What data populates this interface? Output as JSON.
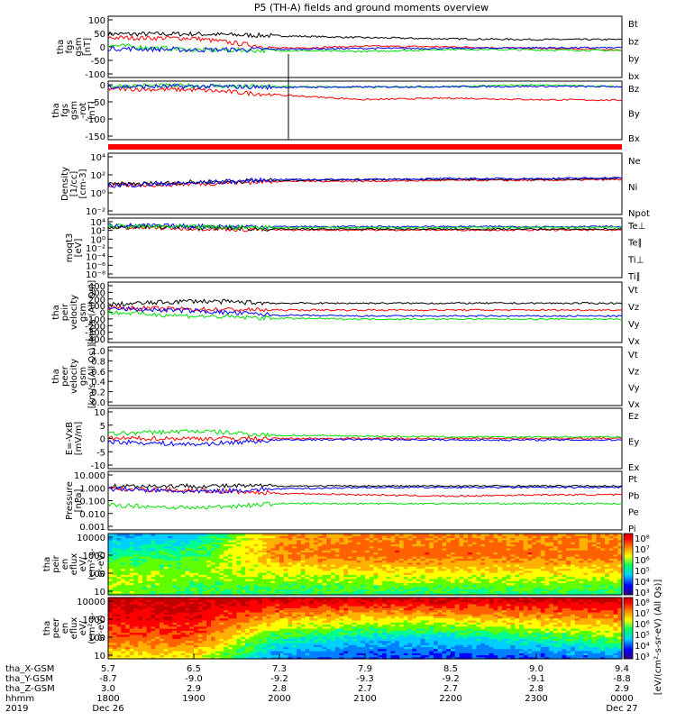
{
  "title": "P5 (TH-A) fields and ground moments overview",
  "colors": {
    "black": "#000000",
    "red": "#ff0000",
    "green": "#00e000",
    "blue": "#0000ff",
    "bar": "#ff0000"
  },
  "chart_data": [
    {
      "type": "line",
      "id": "fgs_gsm",
      "ylabel": [
        "tha",
        "fgs",
        "gsm",
        "[nT]"
      ],
      "yticks": [
        "100",
        "50",
        "0",
        "-50",
        "-100"
      ],
      "ylim": [
        -100,
        100
      ],
      "legend": [
        {
          "name": "Bt",
          "color": "black"
        },
        {
          "name": "bz",
          "color": "red"
        },
        {
          "name": "by",
          "color": "green"
        },
        {
          "name": "bx",
          "color": "blue"
        }
      ],
      "series": [
        {
          "name": "Bt",
          "color": "black",
          "x": [
            "1800",
            "1900",
            "2000",
            "2100",
            "2200",
            "2300",
            "0000"
          ],
          "values": [
            42,
            42,
            36,
            30,
            26,
            24,
            24
          ]
        },
        {
          "name": "bz",
          "color": "red",
          "x": [
            "1800",
            "1900",
            "2000",
            "2100",
            "2200",
            "2300",
            "0000"
          ],
          "values": [
            30,
            28,
            -5,
            2,
            0,
            -5,
            -10
          ]
        },
        {
          "name": "by",
          "color": "green",
          "x": [
            "1800",
            "1900",
            "2000",
            "2100",
            "2200",
            "2300",
            "0000"
          ],
          "values": [
            5,
            -10,
            -12,
            -15,
            -8,
            -10,
            -12
          ]
        },
        {
          "name": "bx",
          "color": "blue",
          "x": [
            "1800",
            "1900",
            "2000",
            "2100",
            "2200",
            "2300",
            "0000"
          ],
          "values": [
            -5,
            -10,
            -8,
            -5,
            -5,
            -3,
            -3
          ]
        }
      ]
    },
    {
      "type": "line",
      "id": "fgs_rot",
      "ylabel": [
        "tha",
        "fgs",
        "gsm",
        "-rot",
        "[nT]"
      ],
      "yticks": [
        "0",
        "-50",
        "-100",
        "-150"
      ],
      "ylim": [
        -170,
        20
      ],
      "legend": [
        {
          "name": "Bz",
          "color": "red"
        },
        {
          "name": "By",
          "color": "green"
        },
        {
          "name": "Bx",
          "color": "blue"
        }
      ],
      "series": [
        {
          "name": "Bz",
          "color": "red",
          "x": [
            "1800",
            "1900",
            "2000",
            "2100",
            "2200",
            "2300",
            "0000"
          ],
          "values": [
            -5,
            -8,
            -25,
            -40,
            -35,
            -40,
            -42
          ]
        },
        {
          "name": "By",
          "color": "green",
          "x": [
            "1800",
            "1900",
            "2000",
            "2100",
            "2200",
            "2300",
            "0000"
          ],
          "values": [
            5,
            5,
            2,
            0,
            2,
            8,
            2
          ]
        },
        {
          "name": "Bx",
          "color": "blue",
          "x": [
            "1800",
            "1900",
            "2000",
            "2100",
            "2200",
            "2300",
            "0000"
          ],
          "values": [
            2,
            3,
            0,
            1,
            2,
            3,
            2
          ]
        }
      ]
    },
    {
      "type": "line",
      "id": "density",
      "scale": "log",
      "ylabel": [
        "Density",
        "[1/cc]",
        "[cm-3]"
      ],
      "yticks": [
        "10⁴",
        "10²",
        "10⁰",
        "10⁻²"
      ],
      "ylim": [
        -3,
        4
      ],
      "legend": [
        {
          "name": "Ne",
          "color": "red"
        },
        {
          "name": "Ni",
          "color": "black"
        },
        {
          "name": "Npot",
          "color": "blue"
        }
      ],
      "series": [
        {
          "name": "Ne",
          "color": "red",
          "x": [
            "1800",
            "1900",
            "2000",
            "2100",
            "2200",
            "2300",
            "0000"
          ],
          "values": [
            0.3,
            0.5,
            0.8,
            0.8,
            0.9,
            0.9,
            1.0
          ]
        },
        {
          "name": "Ni",
          "color": "black",
          "x": [
            "1800",
            "1900",
            "2000",
            "2100",
            "2200",
            "2300",
            "0000"
          ],
          "values": [
            0.4,
            0.7,
            0.9,
            1.0,
            1.0,
            1.0,
            1.1
          ]
        },
        {
          "name": "Npot",
          "color": "blue",
          "x": [
            "1800",
            "1900",
            "2000",
            "2100",
            "2200",
            "2300",
            "0000"
          ],
          "values": [
            0.3,
            0.6,
            1.0,
            1.0,
            1.1,
            1.1,
            1.2
          ]
        }
      ]
    },
    {
      "type": "line",
      "id": "temperature",
      "scale": "log",
      "ylabel": [
        "moqt3",
        "[eV]"
      ],
      "yticks": [
        "10⁴",
        "10²",
        "10⁰",
        "10⁻²",
        "10⁻⁴",
        "10⁻⁶",
        "10⁻⁸"
      ],
      "ylim": [
        -9,
        5
      ],
      "legend": [
        {
          "name": "Te⊥",
          "color": "red"
        },
        {
          "name": "Te∥",
          "color": "black"
        },
        {
          "name": "Ti⊥",
          "color": "blue"
        },
        {
          "name": "Ti∥",
          "color": "green"
        }
      ],
      "series": [
        {
          "name": "Te⊥",
          "color": "red",
          "x": [
            "1800",
            "1900",
            "2000",
            "2100",
            "2200",
            "2300",
            "0000"
          ],
          "values": [
            2.8,
            2.6,
            2.2,
            2.2,
            2.2,
            2.2,
            2.2
          ]
        },
        {
          "name": "Te∥",
          "color": "black",
          "x": [
            "1800",
            "1900",
            "2000",
            "2100",
            "2200",
            "2300",
            "0000"
          ],
          "values": [
            3.0,
            2.8,
            2.4,
            2.4,
            2.4,
            2.4,
            2.4
          ]
        },
        {
          "name": "Ti⊥",
          "color": "blue",
          "x": [
            "1800",
            "1900",
            "2000",
            "2100",
            "2200",
            "2300",
            "0000"
          ],
          "values": [
            3.3,
            3.1,
            3.0,
            3.0,
            3.0,
            3.0,
            3.0
          ]
        },
        {
          "name": "Ti∥",
          "color": "green",
          "x": [
            "1800",
            "1900",
            "2000",
            "2100",
            "2200",
            "2300",
            "0000"
          ],
          "values": [
            3.1,
            2.9,
            2.8,
            2.8,
            2.8,
            2.8,
            2.8
          ]
        }
      ]
    },
    {
      "type": "line",
      "id": "peir_velocity",
      "ylabel": [
        "tha",
        "peir",
        "velocity",
        "gsm",
        "[km/s (All Qs)]"
      ],
      "yticks": [
        "400",
        "300",
        "200",
        "100",
        "0",
        "-100",
        "-200",
        "-300",
        "-400"
      ],
      "ylim": [
        -400,
        400
      ],
      "legend": [
        {
          "name": "Vt",
          "color": "black"
        },
        {
          "name": "Vz",
          "color": "red"
        },
        {
          "name": "Vy",
          "color": "green"
        },
        {
          "name": "Vx",
          "color": "blue"
        }
      ],
      "series": [
        {
          "name": "Vt",
          "color": "black",
          "x": [
            "1800",
            "1900",
            "2000",
            "2100",
            "2200",
            "2300",
            "0000"
          ],
          "values": [
            100,
            150,
            120,
            120,
            120,
            120,
            120
          ]
        },
        {
          "name": "Vz",
          "color": "red",
          "x": [
            "1800",
            "1900",
            "2000",
            "2100",
            "2200",
            "2300",
            "0000"
          ],
          "values": [
            60,
            40,
            30,
            30,
            30,
            30,
            30
          ]
        },
        {
          "name": "Vy",
          "color": "green",
          "x": [
            "1800",
            "1900",
            "2000",
            "2100",
            "2200",
            "2300",
            "0000"
          ],
          "values": [
            0,
            -50,
            -80,
            -90,
            -90,
            -90,
            -90
          ]
        },
        {
          "name": "Vx",
          "color": "blue",
          "x": [
            "1800",
            "1900",
            "2000",
            "2100",
            "2200",
            "2300",
            "0000"
          ],
          "values": [
            50,
            20,
            -40,
            -50,
            -50,
            -50,
            -50
          ]
        }
      ]
    },
    {
      "type": "line",
      "id": "peer_velocity",
      "ylabel": [
        "tha",
        "peer",
        "velocity",
        "gsm",
        "[km/s (All Qs)]"
      ],
      "yticks": [
        "1.0",
        "0.8",
        "0.6",
        "0.4",
        "0.2",
        "0.0"
      ],
      "ylim": [
        0,
        1
      ],
      "legend": [
        {
          "name": "Vt",
          "color": "black"
        },
        {
          "name": "Vz",
          "color": "red"
        },
        {
          "name": "Vy",
          "color": "green"
        },
        {
          "name": "Vx",
          "color": "blue"
        }
      ],
      "series": []
    },
    {
      "type": "line",
      "id": "efield",
      "ylabel": [
        "E=-VxB",
        "[mV/m]"
      ],
      "yticks": [
        "10",
        "5",
        "0",
        "-5",
        "-10"
      ],
      "ylim": [
        -10,
        10
      ],
      "legend": [
        {
          "name": "Ez",
          "color": "red"
        },
        {
          "name": "Ey",
          "color": "green"
        },
        {
          "name": "Ex",
          "color": "blue"
        }
      ],
      "series": [
        {
          "name": "Ez",
          "color": "red",
          "x": [
            "1800",
            "1900",
            "2000",
            "2100",
            "2200",
            "2300",
            "0000"
          ],
          "values": [
            0,
            0,
            0,
            0,
            0,
            0,
            0
          ]
        },
        {
          "name": "Ey",
          "color": "green",
          "x": [
            "1800",
            "1900",
            "2000",
            "2100",
            "2200",
            "2300",
            "0000"
          ],
          "values": [
            1.5,
            2.5,
            1.0,
            0.8,
            0.5,
            0.5,
            0.5
          ]
        },
        {
          "name": "Ex",
          "color": "blue",
          "x": [
            "1800",
            "1900",
            "2000",
            "2100",
            "2200",
            "2300",
            "0000"
          ],
          "values": [
            -1,
            -2,
            -0.5,
            -0.3,
            -0.5,
            -0.5,
            -0.5
          ]
        }
      ]
    },
    {
      "type": "line",
      "id": "pressure",
      "scale": "log",
      "ylabel": [
        "Pressure",
        "[nPa]"
      ],
      "yticks": [
        "10.000",
        "1.000",
        "0.100",
        "0.010",
        "0.001"
      ],
      "ylim": [
        -3,
        1
      ],
      "legend": [
        {
          "name": "Pt",
          "color": "black"
        },
        {
          "name": "Pb",
          "color": "red"
        },
        {
          "name": "Pe",
          "color": "green"
        },
        {
          "name": "Pi",
          "color": "blue"
        }
      ],
      "series": [
        {
          "name": "Pt",
          "color": "black",
          "x": [
            "1800",
            "1900",
            "2000",
            "2100",
            "2200",
            "2300",
            "0000"
          ],
          "values": [
            0.0,
            0.0,
            0.0,
            0.0,
            0.0,
            0.0,
            0.0
          ]
        },
        {
          "name": "Pb",
          "color": "red",
          "x": [
            "1800",
            "1900",
            "2000",
            "2100",
            "2200",
            "2300",
            "0000"
          ],
          "values": [
            -0.2,
            -0.3,
            -0.5,
            -0.6,
            -0.7,
            -0.6,
            -0.6
          ]
        },
        {
          "name": "Pe",
          "color": "green",
          "x": [
            "1800",
            "1900",
            "2000",
            "2100",
            "2200",
            "2300",
            "0000"
          ],
          "values": [
            -1.3,
            -1.5,
            -1.2,
            -1.2,
            -1.2,
            -1.2,
            -1.2
          ]
        },
        {
          "name": "Pi",
          "color": "blue",
          "x": [
            "1800",
            "1900",
            "2000",
            "2100",
            "2200",
            "2300",
            "0000"
          ],
          "values": [
            -0.2,
            -0.4,
            -0.2,
            -0.1,
            -0.1,
            -0.1,
            -0.1
          ]
        }
      ]
    },
    {
      "type": "heatmap",
      "id": "peir_eflux",
      "ylabel": [
        "tha",
        "peir",
        "en",
        "eflux",
        "eV/",
        "(cm²-s-",
        "sr-eV)"
      ],
      "yticks": [
        "10000",
        "1000",
        "100",
        "10"
      ],
      "ylim": [
        1,
        4.2
      ],
      "colorbar_ticks": [
        "10⁸",
        "10⁷",
        "10⁶",
        "10⁵",
        "10⁴",
        "10³"
      ],
      "values_log10": [
        [
          5.5,
          5.8,
          5.0,
          4.2
        ],
        [
          5.2,
          5.6,
          5.2,
          4.5
        ],
        [
          5.0,
          5.8,
          6.8,
          6.6
        ],
        [
          5.0,
          6.0,
          7.0,
          6.8
        ],
        [
          5.0,
          6.0,
          7.0,
          6.8
        ],
        [
          5.0,
          6.0,
          7.0,
          6.7
        ],
        [
          5.0,
          6.0,
          7.0,
          6.7
        ]
      ]
    },
    {
      "type": "heatmap",
      "id": "peer_eflux",
      "ylabel": [
        "tha",
        "peer",
        "en",
        "eflux",
        "eV/",
        "(cm²-s-",
        "sr-eV)"
      ],
      "yticks": [
        "10000",
        "1000",
        "100",
        "10"
      ],
      "ylim": [
        1,
        4.2
      ],
      "colorbar_ticks": [
        "10⁸",
        "10⁷",
        "10⁶",
        "10⁵",
        "10⁴",
        "10³"
      ],
      "values_log10": [
        [
          6.0,
          7.0,
          7.6,
          8.0
        ],
        [
          6.0,
          7.0,
          7.6,
          8.0
        ],
        [
          4.0,
          5.0,
          6.5,
          8.0
        ],
        [
          3.6,
          4.5,
          6.2,
          8.0
        ],
        [
          3.6,
          4.5,
          6.3,
          8.0
        ],
        [
          3.6,
          5.0,
          6.5,
          8.0
        ],
        [
          3.8,
          5.5,
          6.8,
          8.0
        ]
      ]
    }
  ],
  "colorbar_label": "[eV/(cm²-s-sr-eV) (All Qs)]",
  "xaxis": {
    "rows": [
      {
        "label": "tha_X-GSM",
        "values": [
          "5.7",
          "6.5",
          "7.3",
          "7.9",
          "8.5",
          "9.0",
          "9.4"
        ]
      },
      {
        "label": "tha_Y-GSM",
        "values": [
          "-8.7",
          "-9.0",
          "-9.2",
          "-9.3",
          "-9.2",
          "-9.1",
          "-8.8"
        ]
      },
      {
        "label": "tha_Z-GSM",
        "values": [
          "3.0",
          "2.9",
          "2.8",
          "2.7",
          "2.7",
          "2.8",
          "2.9"
        ]
      },
      {
        "label": "hhmm",
        "values": [
          "1800",
          "1900",
          "2000",
          "2100",
          "2200",
          "2300",
          "0000"
        ]
      },
      {
        "label": "2019",
        "values": [
          "Dec 26",
          "",
          "",
          "",
          "",
          "",
          "Dec 27"
        ]
      }
    ]
  }
}
